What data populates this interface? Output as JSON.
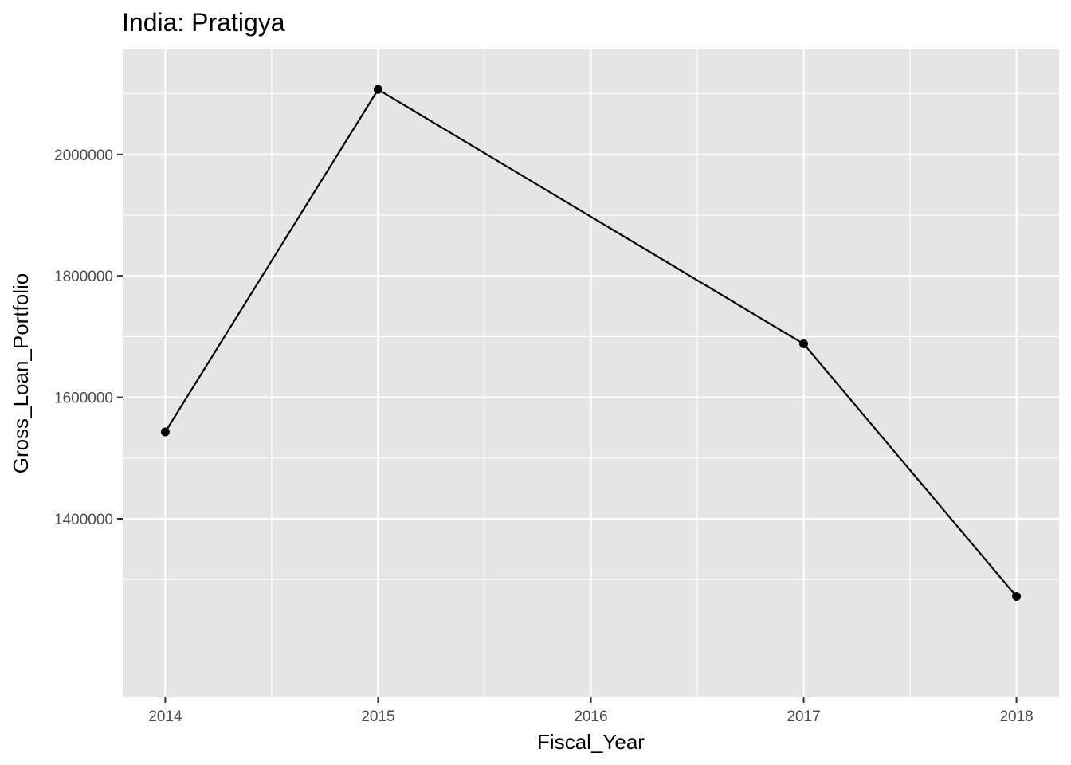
{
  "chart_data": {
    "type": "line",
    "title": "India:  Pratigya",
    "xlabel": "Fiscal_Year",
    "ylabel": "Gross_Loan_Portfolio",
    "x": [
      2014,
      2015,
      2017,
      2018
    ],
    "y": [
      1543000,
      2107000,
      1688000,
      1272000
    ],
    "x_ticks": [
      "2014",
      "2015",
      "2016",
      "2017",
      "2018"
    ],
    "y_ticks": [
      "1400000",
      "1600000",
      "1800000",
      "2000000"
    ],
    "xlim": [
      2013.8,
      2018.2
    ],
    "ylim": [
      1106000,
      2173000
    ],
    "grid": true,
    "panel_color": "#e5e5e5",
    "grid_color": "#ffffff",
    "line_color": "#000000"
  }
}
